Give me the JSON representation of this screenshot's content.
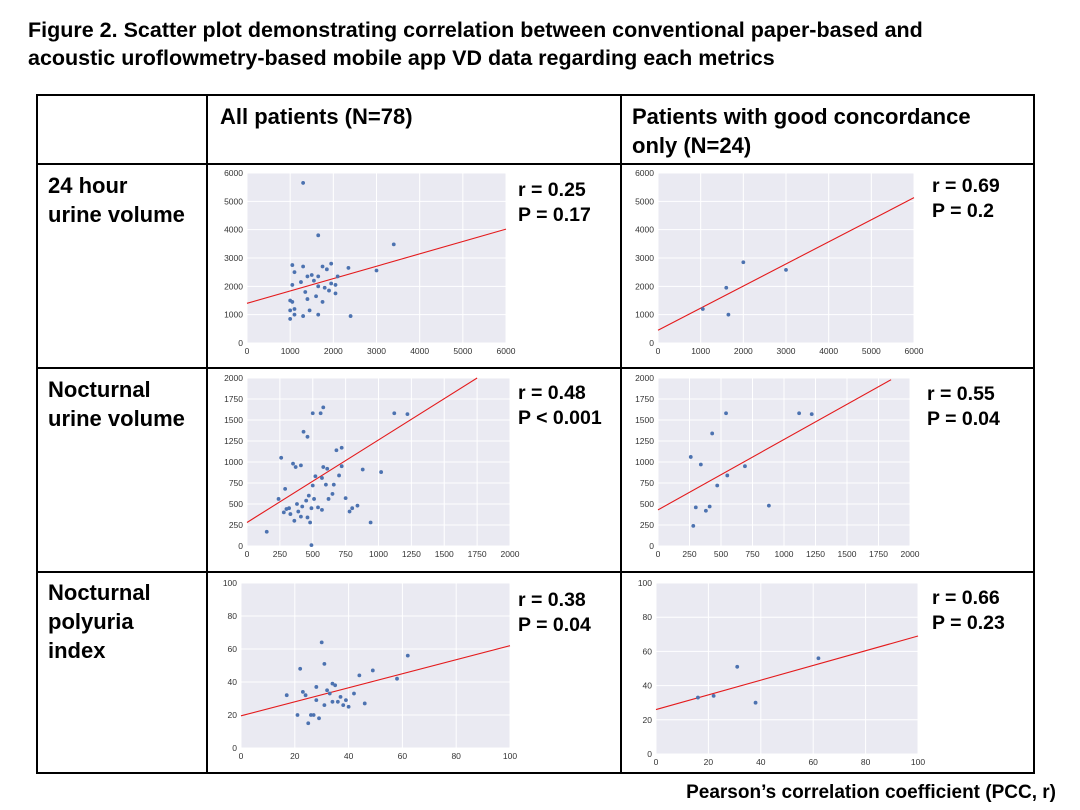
{
  "figure": {
    "title_line1": "Figure 2. Scatter plot demonstrating correlation between conventional paper-based and",
    "title_line2": "acoustic uroflowmetry-based mobile app VD data regarding each metrics",
    "footer": "Pearson’s correlation coefficient (PCC, r)"
  },
  "columns": {
    "all_line1": "All patients (N=78)",
    "good_line1": "Patients with good concordance",
    "good_line2": "only (N=24)"
  },
  "rows": [
    {
      "label_lines": [
        "24 hour",
        "urine volume"
      ]
    },
    {
      "label_lines": [
        "Nocturnal",
        "urine volume"
      ]
    },
    {
      "label_lines": [
        "Nocturnal",
        "polyuria",
        "index"
      ]
    }
  ],
  "colors": {
    "point": "#4c72b0",
    "fit_line": "#e41a1c",
    "plot_bg": "#eaeaf2",
    "grid": "#ffffff"
  },
  "chart_data": [
    {
      "type": "scatter",
      "id": "vol24_all",
      "xlim": [
        0,
        6000
      ],
      "ylim": [
        0,
        6000
      ],
      "xticks": [
        "0",
        "1000",
        "2000",
        "3000",
        "4000",
        "5000",
        "6000"
      ],
      "yticks": [
        "0",
        "1000",
        "2000",
        "3000",
        "4000",
        "5000",
        "6000"
      ],
      "stat_r": "r = 0.25",
      "stat_p": "P = 0.17",
      "fit": [
        [
          0,
          1400
        ],
        [
          6000,
          4020
        ]
      ],
      "points": [
        [
          1300,
          5650
        ],
        [
          1650,
          3800
        ],
        [
          3400,
          3480
        ],
        [
          1050,
          2750
        ],
        [
          1300,
          2700
        ],
        [
          1750,
          2700
        ],
        [
          1950,
          2800
        ],
        [
          2350,
          2650
        ],
        [
          3000,
          2560
        ],
        [
          1100,
          2500
        ],
        [
          1500,
          2400
        ],
        [
          1650,
          2350
        ],
        [
          1850,
          2600
        ],
        [
          1400,
          2350
        ],
        [
          2100,
          2350
        ],
        [
          1250,
          2150
        ],
        [
          1550,
          2200
        ],
        [
          1950,
          2100
        ],
        [
          1050,
          2050
        ],
        [
          1650,
          2000
        ],
        [
          1800,
          1950
        ],
        [
          2050,
          2050
        ],
        [
          1900,
          1850
        ],
        [
          1350,
          1800
        ],
        [
          2050,
          1750
        ],
        [
          1600,
          1650
        ],
        [
          1000,
          1500
        ],
        [
          1050,
          1450
        ],
        [
          1400,
          1550
        ],
        [
          1750,
          1450
        ],
        [
          1100,
          1200
        ],
        [
          1000,
          1150
        ],
        [
          1450,
          1150
        ],
        [
          1100,
          1000
        ],
        [
          1300,
          950
        ],
        [
          1650,
          1000
        ],
        [
          2400,
          950
        ],
        [
          1000,
          850
        ]
      ]
    },
    {
      "type": "scatter",
      "id": "vol24_good",
      "xlim": [
        0,
        6000
      ],
      "ylim": [
        0,
        6000
      ],
      "xticks": [
        "0",
        "1000",
        "2000",
        "3000",
        "4000",
        "5000",
        "6000"
      ],
      "yticks": [
        "0",
        "1000",
        "2000",
        "3000",
        "4000",
        "5000",
        "6000"
      ],
      "stat_r": "r = 0.69",
      "stat_p": "P = 0.2",
      "fit": [
        [
          0,
          450
        ],
        [
          6000,
          5130
        ]
      ],
      "points": [
        [
          1050,
          1200
        ],
        [
          1600,
          1950
        ],
        [
          1650,
          1000
        ],
        [
          2000,
          2850
        ],
        [
          3000,
          2580
        ]
      ]
    },
    {
      "type": "scatter",
      "id": "noct_all",
      "xlim": [
        0,
        2000
      ],
      "ylim": [
        0,
        2000
      ],
      "xticks": [
        "0",
        "250",
        "500",
        "750",
        "1000",
        "1250",
        "1500",
        "1750",
        "2000"
      ],
      "yticks": [
        "0",
        "250",
        "500",
        "750",
        "1000",
        "1250",
        "1500",
        "1750",
        "2000"
      ],
      "stat_r": "r = 0.48",
      "stat_p": "P < 0.001",
      "fit": [
        [
          0,
          280
        ],
        [
          1750,
          2000
        ]
      ],
      "points": [
        [
          150,
          170
        ],
        [
          240,
          560
        ],
        [
          260,
          1050
        ],
        [
          290,
          680
        ],
        [
          280,
          400
        ],
        [
          300,
          440
        ],
        [
          320,
          450
        ],
        [
          330,
          380
        ],
        [
          350,
          980
        ],
        [
          370,
          940
        ],
        [
          380,
          500
        ],
        [
          390,
          410
        ],
        [
          410,
          960
        ],
        [
          420,
          470
        ],
        [
          450,
          540
        ],
        [
          460,
          340
        ],
        [
          470,
          600
        ],
        [
          480,
          280
        ],
        [
          490,
          450
        ],
        [
          500,
          720
        ],
        [
          510,
          560
        ],
        [
          520,
          830
        ],
        [
          540,
          460
        ],
        [
          570,
          810
        ],
        [
          580,
          940
        ],
        [
          600,
          730
        ],
        [
          610,
          920
        ],
        [
          620,
          560
        ],
        [
          650,
          620
        ],
        [
          660,
          730
        ],
        [
          700,
          840
        ],
        [
          720,
          950
        ],
        [
          750,
          570
        ],
        [
          780,
          410
        ],
        [
          800,
          450
        ],
        [
          840,
          480
        ],
        [
          880,
          910
        ],
        [
          940,
          280
        ],
        [
          1020,
          880
        ],
        [
          1120,
          1580
        ],
        [
          1220,
          1570
        ],
        [
          560,
          1580
        ],
        [
          580,
          1650
        ],
        [
          430,
          1360
        ],
        [
          460,
          1300
        ],
        [
          500,
          1580
        ],
        [
          680,
          1140
        ],
        [
          720,
          1170
        ],
        [
          490,
          10
        ],
        [
          360,
          300
        ],
        [
          410,
          350
        ],
        [
          570,
          430
        ]
      ]
    },
    {
      "type": "scatter",
      "id": "noct_good",
      "xlim": [
        0,
        2000
      ],
      "ylim": [
        0,
        2000
      ],
      "xticks": [
        "0",
        "250",
        "500",
        "750",
        "1000",
        "1250",
        "1500",
        "1750",
        "2000"
      ],
      "yticks": [
        "0",
        "250",
        "500",
        "750",
        "1000",
        "1250",
        "1500",
        "1750",
        "2000"
      ],
      "stat_r": "r = 0.55",
      "stat_p": "P = 0.04",
      "fit": [
        [
          0,
          430
        ],
        [
          1850,
          1980
        ]
      ],
      "points": [
        [
          260,
          1060
        ],
        [
          280,
          240
        ],
        [
          300,
          460
        ],
        [
          340,
          970
        ],
        [
          380,
          420
        ],
        [
          410,
          470
        ],
        [
          430,
          1340
        ],
        [
          470,
          720
        ],
        [
          540,
          1580
        ],
        [
          550,
          840
        ],
        [
          690,
          950
        ],
        [
          880,
          480
        ],
        [
          1120,
          1580
        ],
        [
          1220,
          1570
        ]
      ]
    },
    {
      "type": "scatter",
      "id": "npi_all",
      "xlim": [
        0,
        100
      ],
      "ylim": [
        0,
        100
      ],
      "xticks": [
        "0",
        "20",
        "40",
        "60",
        "80",
        "100"
      ],
      "yticks": [
        "0",
        "20",
        "40",
        "60",
        "80",
        "100"
      ],
      "stat_r": "r = 0.38",
      "stat_p": "P = 0.04",
      "fit": [
        [
          0,
          19.5
        ],
        [
          100,
          62
        ]
      ],
      "points": [
        [
          17,
          32
        ],
        [
          21,
          20
        ],
        [
          22,
          48
        ],
        [
          23,
          34
        ],
        [
          24,
          32
        ],
        [
          25,
          15
        ],
        [
          26,
          20
        ],
        [
          27,
          20
        ],
        [
          28,
          37
        ],
        [
          29,
          18
        ],
        [
          30,
          64
        ],
        [
          31,
          51
        ],
        [
          32,
          35
        ],
        [
          33,
          33
        ],
        [
          34,
          28
        ],
        [
          34,
          39
        ],
        [
          35,
          38
        ],
        [
          36,
          28
        ],
        [
          37,
          31
        ],
        [
          38,
          26
        ],
        [
          39,
          29
        ],
        [
          40,
          25
        ],
        [
          42,
          33
        ],
        [
          44,
          44
        ],
        [
          46,
          27
        ],
        [
          49,
          47
        ],
        [
          58,
          42
        ],
        [
          62,
          56
        ],
        [
          31,
          26
        ],
        [
          28,
          29
        ]
      ]
    },
    {
      "type": "scatter",
      "id": "npi_good",
      "xlim": [
        0,
        100
      ],
      "ylim": [
        0,
        100
      ],
      "xticks": [
        "0",
        "20",
        "40",
        "60",
        "80",
        "100"
      ],
      "yticks": [
        "0",
        "20",
        "40",
        "60",
        "80",
        "100"
      ],
      "stat_r": "r = 0.66",
      "stat_p": "P = 0.23",
      "fit": [
        [
          0,
          26
        ],
        [
          100,
          69
        ]
      ],
      "points": [
        [
          16,
          33
        ],
        [
          22,
          34
        ],
        [
          31,
          51
        ],
        [
          38,
          30
        ],
        [
          62,
          56
        ]
      ]
    }
  ]
}
